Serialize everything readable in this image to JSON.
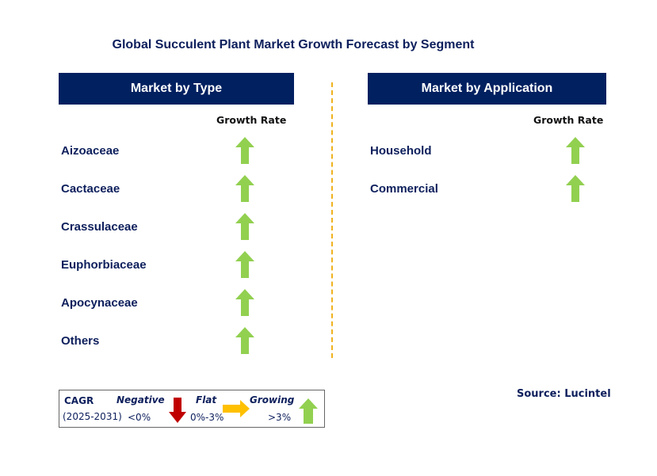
{
  "title": "Global Succulent Plant Market Growth Forecast by Segment",
  "left_panel": {
    "header": "Market by Type",
    "growth_rate_label": "Growth Rate",
    "items": [
      {
        "label": "Aizoaceae",
        "trend": "growing"
      },
      {
        "label": "Cactaceae",
        "trend": "growing"
      },
      {
        "label": "Crassulaceae",
        "trend": "growing"
      },
      {
        "label": "Euphorbiaceae",
        "trend": "growing"
      },
      {
        "label": "Apocynaceae",
        "trend": "growing"
      },
      {
        "label": "Others",
        "trend": "growing"
      }
    ]
  },
  "right_panel": {
    "header": "Market by Application",
    "growth_rate_label": "Growth Rate",
    "items": [
      {
        "label": "Household",
        "trend": "growing"
      },
      {
        "label": "Commercial",
        "trend": "growing"
      }
    ]
  },
  "legend": {
    "cagr_label": "CAGR",
    "period": "(2025-2031)",
    "negative": {
      "label": "Negative",
      "range": "<0%",
      "icon": "down-arrow-icon",
      "color": "#c00000"
    },
    "flat": {
      "label": "Flat",
      "range": "0%-3%",
      "icon": "right-arrow-icon",
      "color": "#ffc000"
    },
    "growing": {
      "label": "Growing",
      "range": ">3%",
      "icon": "up-arrow-icon",
      "color": "#92d050"
    }
  },
  "source": "Source: Lucintel",
  "colors": {
    "header_bg": "#002060",
    "text": "#0d1f5c",
    "divider": "#f0b21f",
    "up": "#92d050",
    "down": "#c00000",
    "flat": "#ffc000"
  }
}
